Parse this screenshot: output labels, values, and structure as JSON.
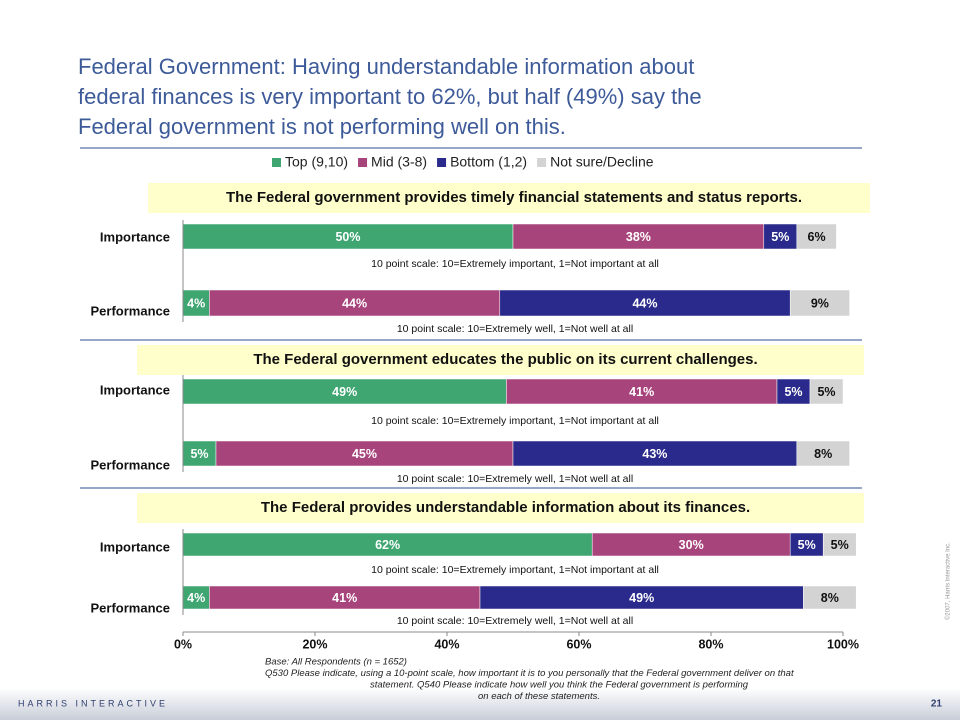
{
  "title": [
    "Federal Government: Having understandable information about",
    "federal finances is very important to 62%, but half (49%) say the",
    "Federal government is not performing well on this."
  ],
  "footer": "HARRIS INTERACTIVE",
  "page_number": "21",
  "copyright": "©2007, Harris Interactive Inc.",
  "base_note": [
    "Base: All Respondents (n = 1652)",
    "Q530 Please indicate, using a 10-point scale, how important it is to you personally that the Federal government deliver on that",
    "statement. Q540 Please indicate how well you think the Federal government is performing",
    "on each of these statements."
  ],
  "chart_data": [
    {
      "type": "stacked-bar-horizontal",
      "title": "The Federal government provides timely financial statements and status reports.",
      "categories": [
        "Importance",
        "Performance"
      ],
      "category_notes": [
        "10 point scale: 10=Extremely important, 1=Not important at all",
        "10 point scale: 10=Extremely well, 1=Not well at all"
      ],
      "xlim": [
        0,
        100
      ],
      "series": [
        {
          "name": "Top (9,10)",
          "color": "#3fa672",
          "values": [
            50,
            4
          ],
          "value_labels": [
            "50%",
            "4%"
          ]
        },
        {
          "name": "Mid (3-8)",
          "color": "#a8447c",
          "values": [
            38,
            44
          ],
          "value_labels": [
            "38%",
            "44%"
          ]
        },
        {
          "name": "Bottom (1,2)",
          "color": "#2a2a8c",
          "values": [
            5,
            44
          ],
          "value_labels": [
            "5%",
            "44%"
          ]
        },
        {
          "name": "Not sure/Decline",
          "color": "#d3d3d3",
          "values": [
            6,
            9
          ],
          "value_labels": [
            "6%",
            "9%"
          ]
        }
      ]
    },
    {
      "type": "stacked-bar-horizontal",
      "title": "The Federal government educates the public on its current challenges.",
      "categories": [
        "Importance",
        "Performance"
      ],
      "category_notes": [
        "10 point scale: 10=Extremely important, 1=Not important at all",
        "10 point scale: 10=Extremely well, 1=Not well at all"
      ],
      "xlim": [
        0,
        100
      ],
      "series": [
        {
          "color": "#3fa672",
          "values": [
            49,
            5
          ],
          "value_labels": [
            "49%",
            "5%"
          ]
        },
        {
          "color": "#a8447c",
          "values": [
            41,
            45
          ],
          "value_labels": [
            "41%",
            "45%"
          ]
        },
        {
          "color": "#2a2a8c",
          "values": [
            5,
            43
          ],
          "value_labels": [
            "5%",
            "43%"
          ]
        },
        {
          "color": "#d3d3d3",
          "values": [
            5,
            8
          ],
          "value_labels": [
            "5%",
            "8%"
          ]
        }
      ]
    },
    {
      "type": "stacked-bar-horizontal",
      "title": "The Federal provides understandable information about its finances.",
      "categories": [
        "Importance",
        "Performance"
      ],
      "category_notes": [
        "10 point scale: 10=Extremely important, 1=Not important at all",
        "10 point scale: 10=Extremely well, 1=Not well at all"
      ],
      "xlim": [
        0,
        100
      ],
      "xticks": [
        {
          "value": 0,
          "label": "0%"
        },
        {
          "value": 20,
          "label": "20%"
        },
        {
          "value": 40,
          "label": "40%"
        },
        {
          "value": 60,
          "label": "60%"
        },
        {
          "value": 80,
          "label": "80%"
        },
        {
          "value": 100,
          "label": "100%"
        }
      ],
      "series": [
        {
          "color": "#3fa672",
          "values": [
            62,
            4
          ],
          "value_labels": [
            "62%",
            "4%"
          ]
        },
        {
          "color": "#a8447c",
          "values": [
            30,
            41
          ],
          "value_labels": [
            "30%",
            "41%"
          ]
        },
        {
          "color": "#2a2a8c",
          "values": [
            5,
            49
          ],
          "value_labels": [
            "5%",
            "49%"
          ]
        },
        {
          "color": "#d3d3d3",
          "values": [
            5,
            8
          ],
          "value_labels": [
            "5%",
            "8%"
          ]
        }
      ]
    }
  ]
}
